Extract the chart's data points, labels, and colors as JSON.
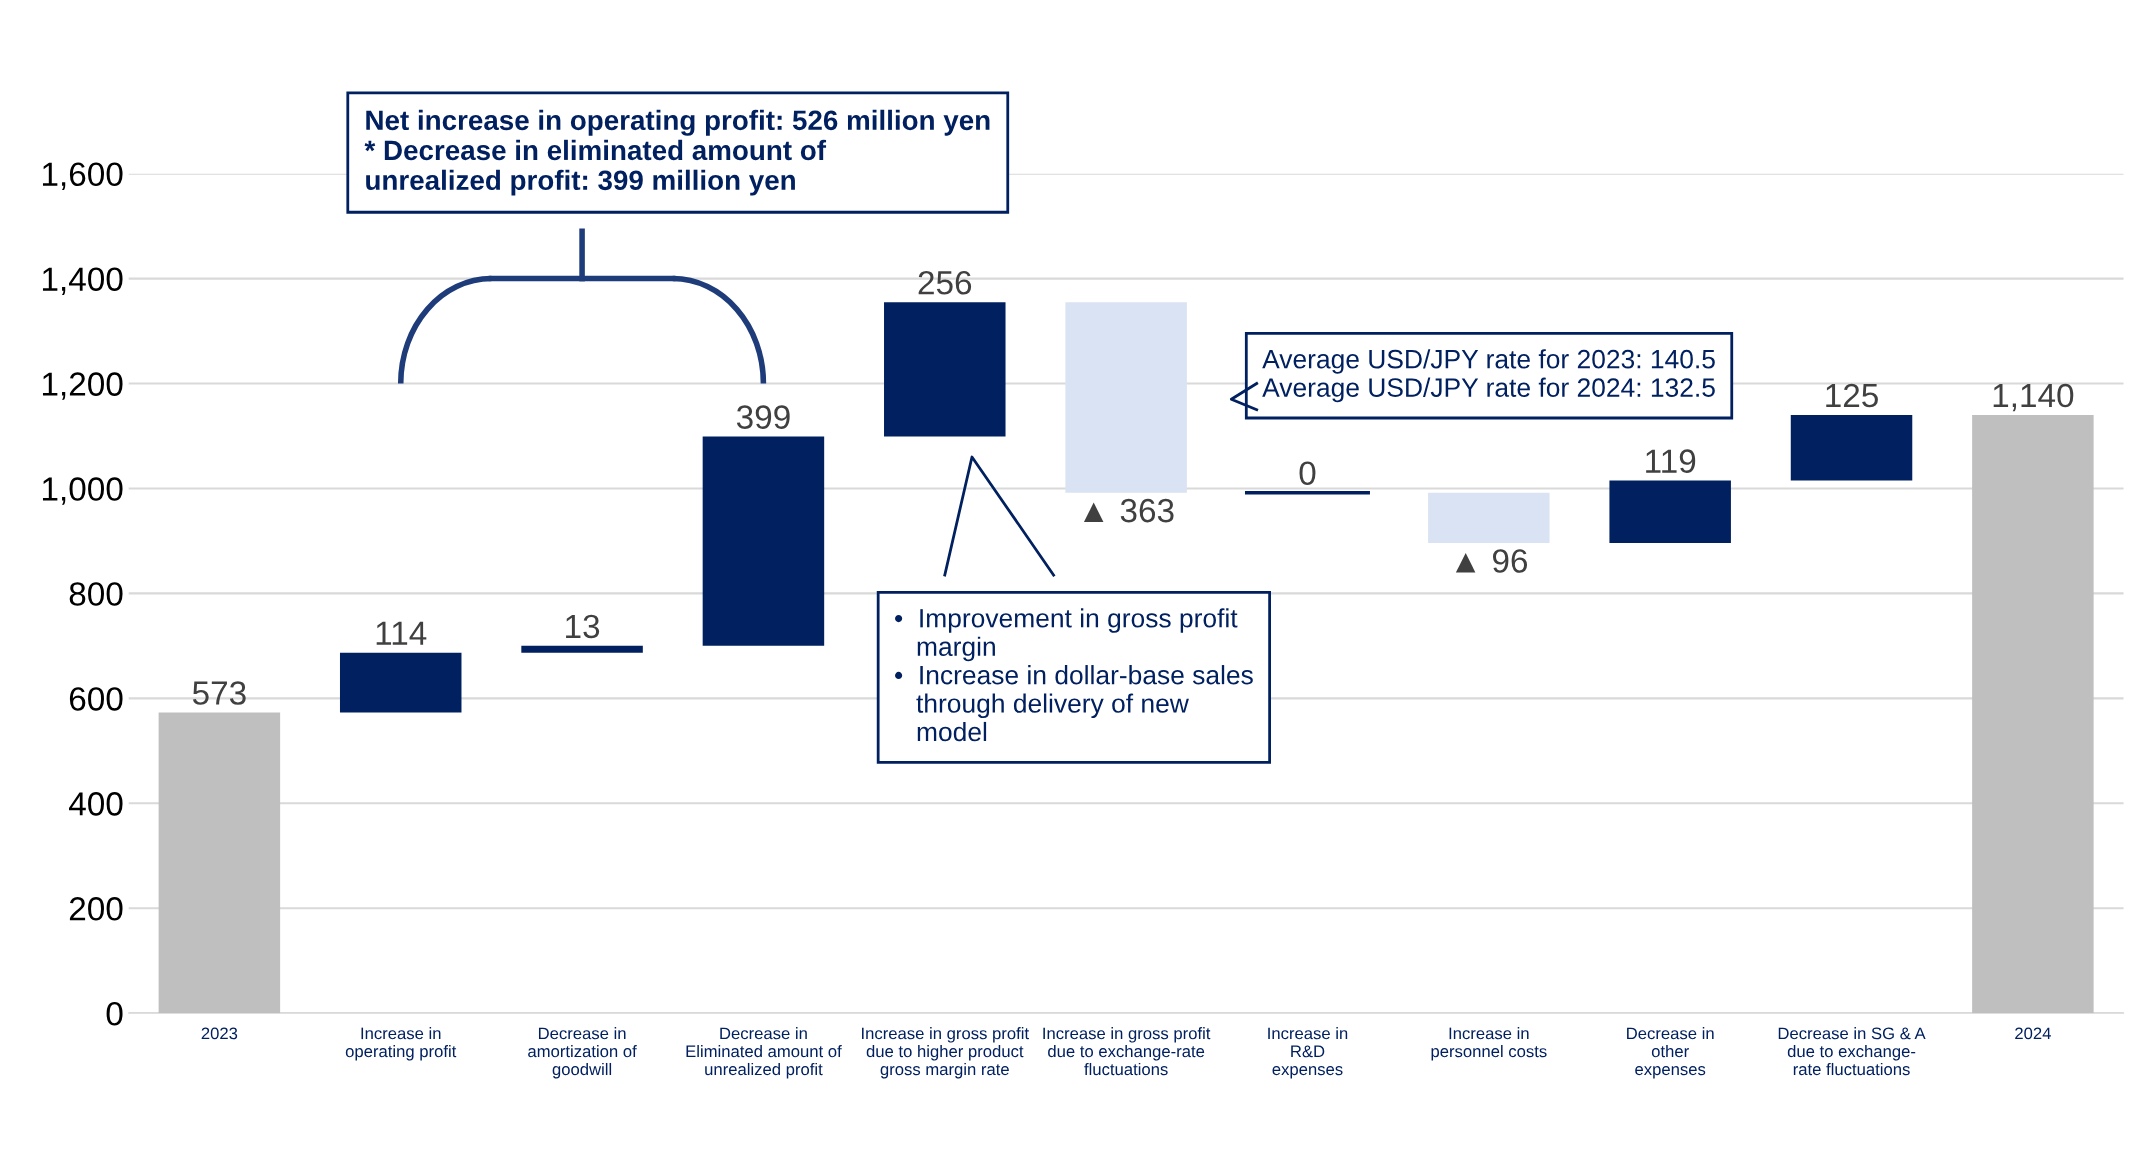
{
  "chart_data": {
    "type": "bar",
    "categories": [
      "2023",
      "Increase in\noperating profit",
      "Decrease in\namortization of\ngoodwill",
      "Decrease in\nEliminated amount of\nunrealized profit",
      "Increase in gross profit\ndue to higher product\ngross margin rate",
      "Increase in gross profit\ndue to exchange-rate\nfluctuations",
      "Increase in\nR&D\nexpenses",
      "Increase in\npersonnel costs",
      "Decrease in\nother\nexpenses",
      "Decrease in SG & A\ndue to exchange-\nrate fluctuations",
      "2024"
    ],
    "values": [
      573,
      114,
      13,
      399,
      256,
      -363,
      0,
      -96,
      119,
      125,
      1140
    ],
    "base": [
      0,
      573,
      687,
      700,
      1099,
      1355,
      992,
      992,
      896,
      1015,
      0
    ],
    "colors": [
      "#bfbfbf",
      "#002060",
      "#002060",
      "#002060",
      "#002060",
      "#dae3f3",
      "#002060",
      "#dae3f3",
      "#002060",
      "#002060",
      "#bfbfbf"
    ],
    "value_labels": [
      "573",
      "114",
      "13",
      "399",
      "256",
      "▲ 363",
      "0",
      "▲ 96",
      "119",
      "125",
      "1,140"
    ],
    "ylim": [
      0,
      1600
    ],
    "yticks": [
      0,
      200,
      400,
      600,
      800,
      {
        "value": 1000,
        "label": "1,000"
      },
      {
        "value": 1200,
        "label": "1,200"
      },
      {
        "value": 1400,
        "label": "1,400"
      },
      {
        "value": 1600,
        "label": "1,600"
      }
    ],
    "grid": "y",
    "annotations": [
      "Net increase in operating profit: 526 million yen\n* Decrease in eliminated amount of\nunrealized profit: 399 million yen",
      "Average USD/JPY rate for 2023: 140.5\nAverage USD/JPY rate for 2024: 132.5",
      "•  Improvement in gross profit\n   margin\n•  Increase in dollar-base sales\n   through delivery of new\n   model"
    ]
  }
}
